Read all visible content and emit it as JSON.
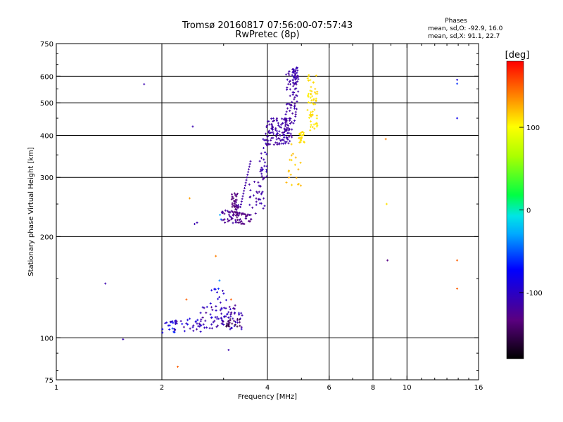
{
  "chart_data": {
    "type": "scatter",
    "title": "Tromsø 20160817 07:56:00-07:57:43",
    "subtitle": "RwPretec (8p)",
    "xlabel": "Frequency [MHz]",
    "ylabel": "Stationary phase Virtual Height [km]",
    "x_scale": "log",
    "y_scale": "log",
    "xlim": [
      1,
      16
    ],
    "ylim": [
      75,
      750
    ],
    "x_ticks": [
      1,
      2,
      4,
      6,
      8,
      10,
      16
    ],
    "y_ticks": [
      75,
      100,
      200,
      300,
      400,
      500,
      600,
      750
    ],
    "x_grid": [
      2,
      4,
      6,
      8,
      10
    ],
    "y_grid": [
      100,
      200,
      300,
      400,
      500,
      600
    ],
    "grid": true,
    "phases_legend": {
      "title": "Phases",
      "line_o": "mean, sd,O: -92.9, 16.0",
      "line_x": "mean, sd,X:  91.1, 22.7"
    },
    "colorbar": {
      "label": "[deg]",
      "min": -180,
      "max": 180,
      "ticks": [
        100,
        0,
        -100
      ]
    },
    "points": [
      {
        "x": 1.78,
        "y": 568,
        "phase": -110
      },
      {
        "x": 2.45,
        "y": 425,
        "phase": -110
      },
      {
        "x": 2.4,
        "y": 260,
        "phase": 130
      },
      {
        "x": 2.48,
        "y": 218,
        "phase": -110
      },
      {
        "x": 2.52,
        "y": 220,
        "phase": -110
      },
      {
        "x": 1.38,
        "y": 145,
        "phase": -110
      },
      {
        "x": 1.55,
        "y": 99,
        "phase": -110
      },
      {
        "x": 2.22,
        "y": 82,
        "phase": 150
      },
      {
        "x": 2.85,
        "y": 175,
        "phase": 140
      },
      {
        "x": 3.1,
        "y": 92,
        "phase": -110
      },
      {
        "x": 2.35,
        "y": 130,
        "phase": 150
      },
      {
        "x": 2.92,
        "y": 148,
        "phase": -40
      },
      {
        "x": 2.9,
        "y": 140,
        "phase": -60
      },
      {
        "x": 3.15,
        "y": 130,
        "phase": 150
      },
      {
        "x": 2.93,
        "y": 232,
        "phase": -30
      },
      {
        "x": 2.95,
        "y": 225,
        "phase": -50
      },
      {
        "x": 8.7,
        "y": 390,
        "phase": 140
      },
      {
        "x": 8.75,
        "y": 250,
        "phase": 110
      },
      {
        "x": 8.8,
        "y": 170,
        "phase": -130
      },
      {
        "x": 13.9,
        "y": 585,
        "phase": -90
      },
      {
        "x": 13.9,
        "y": 570,
        "phase": -60
      },
      {
        "x": 13.9,
        "y": 450,
        "phase": -80
      },
      {
        "x": 13.9,
        "y": 170,
        "phase": 150
      },
      {
        "x": 13.9,
        "y": 140,
        "phase": 150
      }
    ],
    "clusters": [
      {
        "x_range": [
          2.0,
          2.2
        ],
        "y_range": [
          103,
          113
        ],
        "phase": -80,
        "n": 14,
        "spread_phase": 60,
        "seed": 11
      },
      {
        "x_range": [
          2.1,
          2.6
        ],
        "y_range": [
          104,
          114
        ],
        "phase": -100,
        "n": 30,
        "spread_phase": 50,
        "seed": 12
      },
      {
        "x_range": [
          2.55,
          3.4
        ],
        "y_range": [
          106,
          125
        ],
        "phase": -110,
        "n": 70,
        "spread_phase": 30,
        "seed": 13
      },
      {
        "x_range": [
          2.75,
          3.1
        ],
        "y_range": [
          112,
          140
        ],
        "phase": -100,
        "n": 25,
        "spread_phase": 40,
        "seed": 14
      },
      {
        "x_range": [
          3.05,
          3.35
        ],
        "y_range": [
          108,
          114
        ],
        "phase": -150,
        "n": 18,
        "spread_phase": 20,
        "seed": 15
      },
      {
        "x_range": [
          2.95,
          3.2
        ],
        "y_range": [
          218,
          240
        ],
        "phase": -120,
        "n": 25,
        "spread_phase": 20,
        "seed": 16
      },
      {
        "x_range": [
          3.15,
          3.3
        ],
        "y_range": [
          230,
          270
        ],
        "phase": -130,
        "n": 30,
        "spread_phase": 20,
        "seed": 17
      },
      {
        "x_range": [
          3.2,
          3.35
        ],
        "y_range": [
          218,
          250
        ],
        "phase": -125,
        "n": 20,
        "spread_phase": 20,
        "seed": 18
      },
      {
        "x_range": [
          3.3,
          3.6
        ],
        "y_range": [
          218,
          235
        ],
        "phase": -130,
        "n": 25,
        "spread_phase": 15,
        "seed": 19
      },
      {
        "x_range": [
          3.55,
          3.95
        ],
        "y_range": [
          230,
          300
        ],
        "phase": -115,
        "n": 35,
        "spread_phase": 15,
        "seed": 20
      },
      {
        "x_range": [
          3.8,
          4.0
        ],
        "y_range": [
          300,
          390
        ],
        "phase": -110,
        "n": 25,
        "spread_phase": 15,
        "seed": 21
      },
      {
        "x_range": [
          3.95,
          4.7
        ],
        "y_range": [
          375,
          450
        ],
        "phase": -115,
        "n": 120,
        "spread_phase": 15,
        "seed": 22
      },
      {
        "x_range": [
          4.5,
          4.9
        ],
        "y_range": [
          430,
          640
        ],
        "phase": -115,
        "n": 70,
        "spread_phase": 15,
        "seed": 23
      },
      {
        "x_range": [
          4.7,
          4.9
        ],
        "y_range": [
          570,
          640
        ],
        "phase": -110,
        "n": 25,
        "spread_phase": 15,
        "seed": 24
      },
      {
        "x_range": [
          4.5,
          5.0
        ],
        "y_range": [
          280,
          400
        ],
        "phase": 120,
        "n": 20,
        "spread_phase": 15,
        "seed": 25
      },
      {
        "x_range": [
          4.9,
          5.1
        ],
        "y_range": [
          380,
          410
        ],
        "phase": 110,
        "n": 20,
        "spread_phase": 10,
        "seed": 26
      },
      {
        "x_range": [
          5.2,
          5.55
        ],
        "y_range": [
          410,
          610
        ],
        "phase": 110,
        "n": 60,
        "spread_phase": 12,
        "seed": 27
      }
    ],
    "curves": [
      {
        "start": [
          3.35,
          245
        ],
        "end": [
          3.58,
          335
        ],
        "phase": -115,
        "n": 18
      },
      {
        "start": [
          3.2,
          260
        ],
        "end": [
          3.3,
          220
        ],
        "phase": -140,
        "n": 10
      }
    ]
  }
}
